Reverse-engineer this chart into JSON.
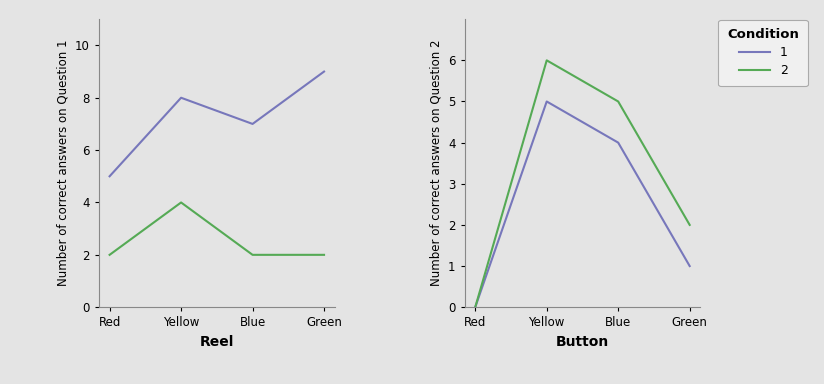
{
  "plot1": {
    "categories": [
      "Red",
      "Yellow",
      "Blue",
      "Green"
    ],
    "condition1": [
      5,
      8,
      7,
      9
    ],
    "condition2": [
      2,
      4,
      2,
      2
    ],
    "xlabel": "Reel",
    "ylabel": "Number of correct answers on Question 1",
    "ylim": [
      0,
      11
    ],
    "yticks": [
      0,
      2,
      4,
      6,
      8,
      10
    ],
    "color1": "#7777bb",
    "color2": "#55aa55"
  },
  "plot2": {
    "categories": [
      "Red",
      "Yellow",
      "Blue",
      "Green"
    ],
    "condition1": [
      0,
      5,
      4,
      1
    ],
    "condition2": [
      0,
      6,
      5,
      2
    ],
    "xlabel": "Button",
    "ylabel": "Number of correct answers on Question 2",
    "ylim": [
      0,
      7
    ],
    "yticks": [
      0,
      1,
      2,
      3,
      4,
      5,
      6
    ],
    "color1": "#7777bb",
    "color2": "#55aa55"
  },
  "legend_title": "Condition",
  "legend_labels": [
    "1",
    "2"
  ],
  "bg_color": "#e4e4e4",
  "figure_bg": "#e4e4e4"
}
